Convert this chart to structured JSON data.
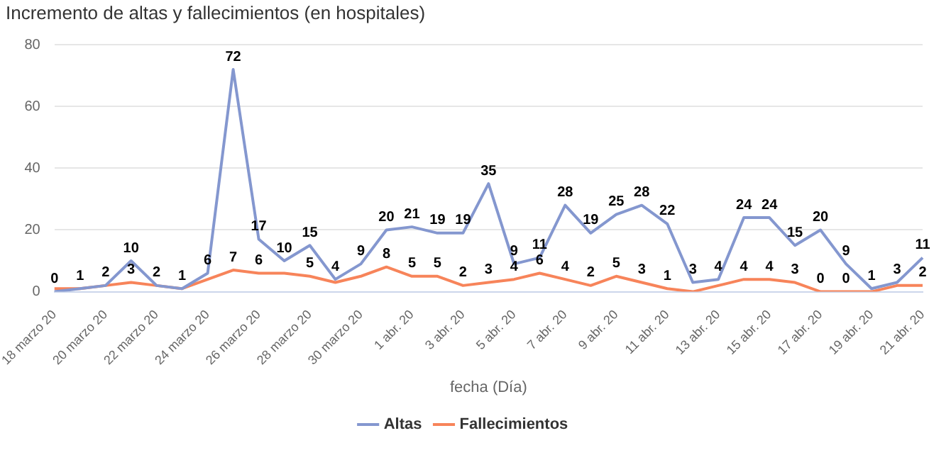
{
  "chart_data": {
    "type": "line",
    "title": "Incremento de altas y fallecimientos (en hospitales)",
    "xlabel": "fecha (Día)",
    "categories": [
      "18 marzo 20",
      null,
      "20 marzo 20",
      null,
      "22 marzo 20",
      null,
      "24 marzo 20",
      null,
      "26 marzo 20",
      null,
      "28 marzo 20",
      null,
      "30 marzo 20",
      null,
      "1 abr. 20",
      null,
      "3 abr. 20",
      null,
      "5 abr. 20",
      null,
      "7 abr. 20",
      null,
      "9 abr. 20",
      null,
      "11 abr. 20",
      null,
      "13 abr. 20",
      null,
      "15 abr. 20",
      null,
      "17 abr. 20",
      null,
      "19 abr. 20",
      null,
      "21 abr. 20"
    ],
    "series": [
      {
        "name": "Altas",
        "color": "#8497cf",
        "values": [
          0,
          1,
          2,
          10,
          2,
          1,
          6,
          72,
          17,
          10,
          15,
          4,
          9,
          20,
          21,
          19,
          19,
          35,
          9,
          11,
          28,
          19,
          25,
          28,
          22,
          3,
          4,
          24,
          24,
          15,
          20,
          9,
          1,
          3,
          11
        ],
        "value_labels": [
          "0",
          "1",
          "2",
          "10",
          "2",
          "1",
          "6",
          "72",
          "17",
          "10",
          "15",
          "4",
          "9",
          "20",
          "21",
          "19",
          "19",
          "35",
          "9",
          "11",
          "28",
          "19",
          "25",
          "28",
          "22",
          "3",
          "4",
          "24",
          "24",
          "15",
          "20",
          "9",
          "1",
          "3",
          "11"
        ]
      },
      {
        "name": "Fallecimientos",
        "color": "#f7845a",
        "values": [
          1,
          1,
          2,
          3,
          2,
          1,
          4,
          7,
          6,
          6,
          5,
          3,
          5,
          8,
          5,
          5,
          2,
          3,
          4,
          6,
          4,
          2,
          5,
          3,
          1,
          0,
          2,
          4,
          4,
          3,
          0,
          0,
          0,
          2,
          2
        ],
        "value_labels": [
          null,
          null,
          null,
          "3",
          null,
          null,
          null,
          "7",
          "6",
          null,
          "5",
          null,
          null,
          "8",
          "5",
          "5",
          "2",
          "3",
          "4",
          "6",
          "4",
          "2",
          "5",
          "3",
          "1",
          null,
          null,
          "4",
          "4",
          "3",
          "0",
          "0",
          null,
          null,
          "2"
        ]
      }
    ],
    "ylim": [
      0,
      80
    ],
    "yticks": [
      0,
      20,
      40,
      60,
      80
    ],
    "grid": "y",
    "legend": "bottom",
    "marker": "none",
    "line_style": "solid"
  }
}
